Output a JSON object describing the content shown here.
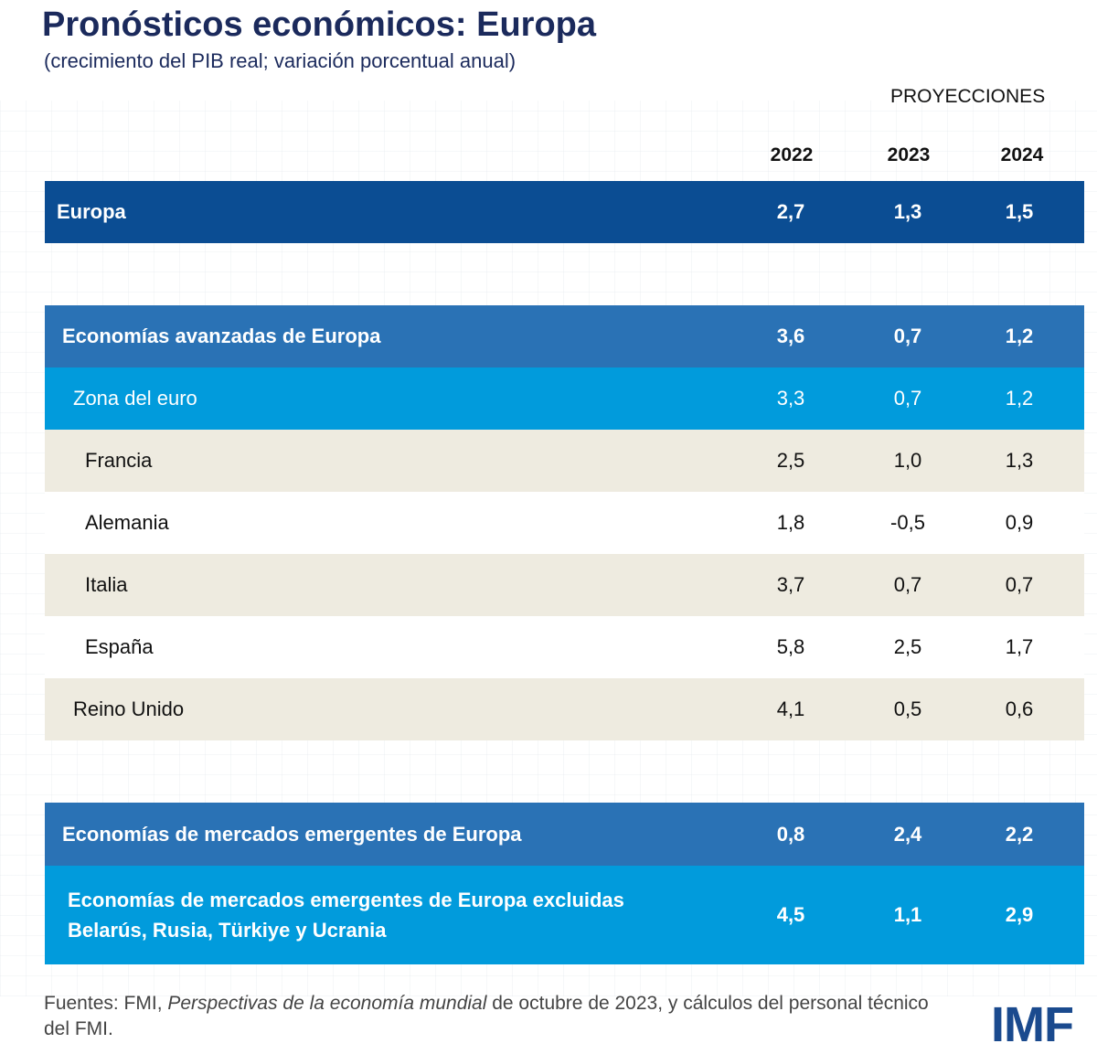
{
  "title": "Pronósticos económicos: Europa",
  "subtitle": "(crecimiento del PIB real; variación porcentual anual)",
  "projections_label": "PROYECCIONES",
  "years": [
    "2022",
    "2023",
    "2024"
  ],
  "colors": {
    "europa": "#0b4d93",
    "group": "#2a72b5",
    "subgroup": "#019bdc",
    "beige": "#eeebe0",
    "title": "#1b2a5c"
  },
  "chart_data": {
    "type": "table",
    "title": "Pronósticos económicos: Europa",
    "columns": [
      "2022",
      "2023",
      "2024"
    ],
    "rows": [
      {
        "label": "Europa",
        "values": [
          "2,7",
          "1,3",
          "1,5"
        ]
      },
      {
        "label": "Economías avanzadas de Europa",
        "values": [
          "3,6",
          "0,7",
          "1,2"
        ]
      },
      {
        "label": "Zona del euro",
        "values": [
          "3,3",
          "0,7",
          "1,2"
        ]
      },
      {
        "label": "Francia",
        "values": [
          "2,5",
          "1,0",
          "1,3"
        ]
      },
      {
        "label": "Alemania",
        "values": [
          "1,8",
          "-0,5",
          "0,9"
        ]
      },
      {
        "label": "Italia",
        "values": [
          "3,7",
          "0,7",
          "0,7"
        ]
      },
      {
        "label": "España",
        "values": [
          "5,8",
          "2,5",
          "1,7"
        ]
      },
      {
        "label": "Reino Unido",
        "values": [
          "4,1",
          "0,5",
          "0,6"
        ]
      },
      {
        "label": "Economías de mercados emergentes de Europa",
        "values": [
          "0,8",
          "2,4",
          "2,2"
        ]
      },
      {
        "label": "Economías de mercados emergentes de Europa excluidas",
        "label2": "Belarús, Rusia, Türkiye y Ucrania",
        "values": [
          "4,5",
          "1,1",
          "2,9"
        ]
      }
    ]
  },
  "footer": {
    "prefix": "Fuentes: FMI, ",
    "italic": "Perspectivas de la economía mundial",
    "suffix": " de octubre de 2023, y cálculos del personal técnico del FMI."
  },
  "logo": "IMF"
}
